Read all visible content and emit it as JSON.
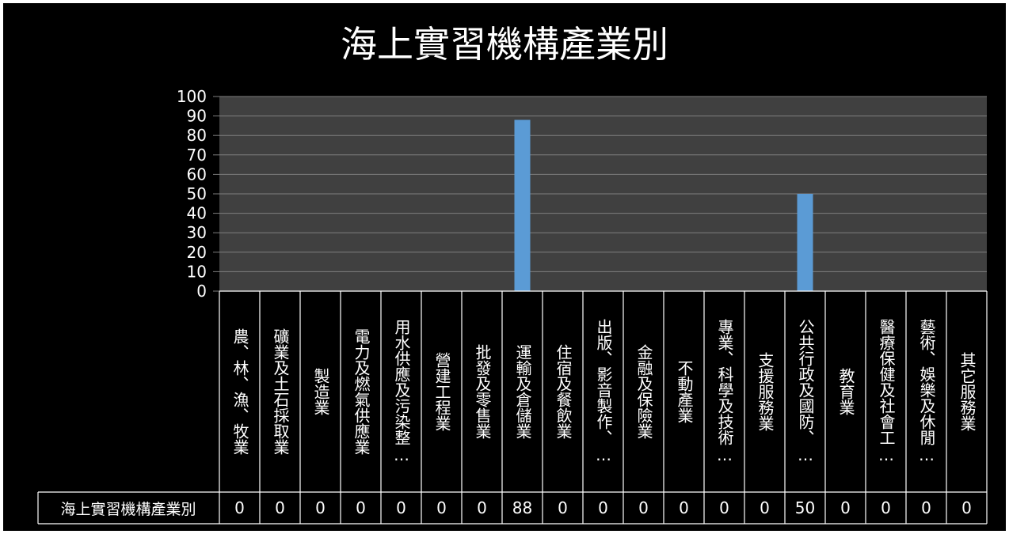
{
  "chart_data": {
    "type": "bar",
    "title": "海上實習機構產業別",
    "categories": [
      "農、林、漁、牧業",
      "礦業及土石採取業",
      "製造業",
      "電力及燃氣供應業",
      "用水供應及污染整…",
      "營建工程業",
      "批發及零售業",
      "運輸及倉儲業",
      "住宿及餐飲業",
      "出版、影音製作、…",
      "金融及保險業",
      "不動產業",
      "專業、科學及技術…",
      "支援服務業",
      "公共行政及國防、…",
      "教育業",
      "醫療保健及社會工…",
      "藝術、娛樂及休閒…",
      "其它服務業"
    ],
    "series": [
      {
        "name": "海上實習機構產業別",
        "values": [
          0,
          0,
          0,
          0,
          0,
          0,
          0,
          88,
          0,
          0,
          0,
          0,
          0,
          0,
          50,
          0,
          0,
          0,
          0
        ]
      }
    ],
    "ylim": [
      0,
      100
    ],
    "yticks": [
      "0",
      "10",
      "20",
      "30",
      "40",
      "50",
      "60",
      "70",
      "80",
      "90",
      "100"
    ],
    "grid": true,
    "legend": "none",
    "colors": {
      "background": "#000000",
      "plot_area": "#404040",
      "bar": "#5b9bd5",
      "gridline": "#7f7f7f",
      "text": "#ffffff"
    }
  }
}
